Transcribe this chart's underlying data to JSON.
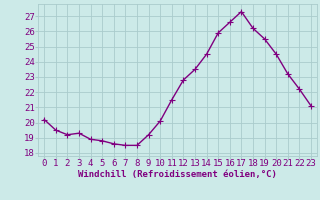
{
  "x": [
    0,
    1,
    2,
    3,
    4,
    5,
    6,
    7,
    8,
    9,
    10,
    11,
    12,
    13,
    14,
    15,
    16,
    17,
    18,
    19,
    20,
    21,
    22,
    23
  ],
  "y": [
    20.2,
    19.5,
    19.2,
    19.3,
    18.9,
    18.8,
    18.6,
    18.5,
    18.5,
    19.2,
    20.1,
    21.5,
    22.8,
    23.5,
    24.5,
    25.9,
    26.6,
    27.3,
    26.2,
    25.5,
    24.5,
    23.2,
    22.2,
    21.1
  ],
  "line_color": "#800080",
  "marker": "D",
  "marker_size": 2.2,
  "bg_color": "#cceae8",
  "grid_color": "#aacccc",
  "xlabel": "Windchill (Refroidissement éolien,°C)",
  "ylabel_ticks": [
    18,
    19,
    20,
    21,
    22,
    23,
    24,
    25,
    26,
    27
  ],
  "xlim": [
    -0.5,
    23.5
  ],
  "ylim": [
    17.8,
    27.8
  ],
  "line_width": 1.0,
  "xlabel_fontsize": 6.5,
  "tick_fontsize": 6.5,
  "label_color": "#800080"
}
